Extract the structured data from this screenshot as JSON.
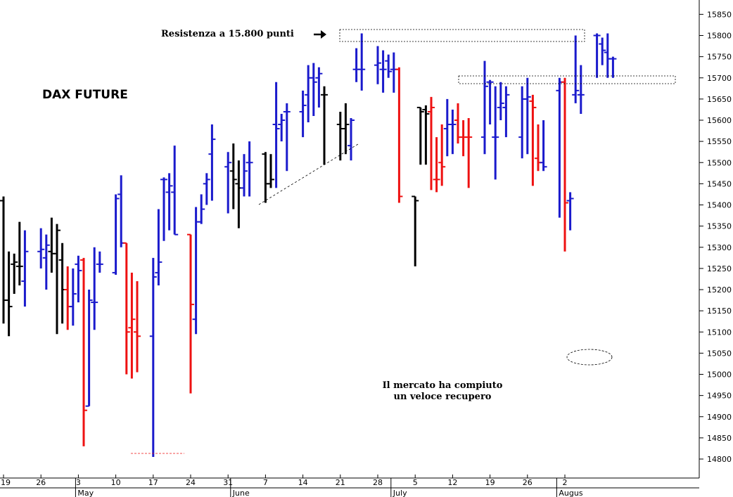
{
  "chart_data": {
    "type": "ohlc",
    "title": "DAX FUTURE",
    "y_ticks": [
      14800,
      14850,
      14900,
      14950,
      15000,
      15050,
      15100,
      15150,
      15200,
      15250,
      15300,
      15350,
      15400,
      15450,
      15500,
      15550,
      15600,
      15650,
      15700,
      15750,
      15800,
      15850
    ],
    "ylim": [
      14770,
      15870
    ],
    "grid": false,
    "x_ticks": [
      {
        "label": "19",
        "day": -1
      },
      {
        "label": "26",
        "day": 6
      },
      {
        "label": "3",
        "day": 13
      },
      {
        "label": "10",
        "day": 20
      },
      {
        "label": "17",
        "day": 27
      },
      {
        "label": "24",
        "day": 34
      },
      {
        "label": "31",
        "day": 41
      },
      {
        "label": "7",
        "day": 48
      },
      {
        "label": "14",
        "day": 55
      },
      {
        "label": "21",
        "day": 62
      },
      {
        "label": "28",
        "day": 69
      },
      {
        "label": "5",
        "day": 76
      },
      {
        "label": "12",
        "day": 83
      },
      {
        "label": "19",
        "day": 90
      },
      {
        "label": "26",
        "day": 97
      },
      {
        "label": "2",
        "day": 104
      }
    ],
    "month_labels": [
      {
        "label": "May",
        "day": 13
      },
      {
        "label": "June",
        "day": 42
      },
      {
        "label": "July",
        "day": 72
      },
      {
        "label": "Augus",
        "day": 103
      }
    ],
    "colors": {
      "up": "#1a1acc",
      "down": "#ee1111",
      "neutral": "#000000"
    },
    "bars": [
      {
        "d": -1,
        "o": 15410,
        "h": 15420,
        "l": 15120,
        "c": 15175,
        "k": "k"
      },
      {
        "d": 0,
        "o": 15175,
        "h": 15290,
        "l": 15090,
        "c": 15160,
        "k": "k"
      },
      {
        "d": 1,
        "o": 15260,
        "h": 15285,
        "l": 15190,
        "c": 15265,
        "k": "k"
      },
      {
        "d": 2,
        "o": 15255,
        "h": 15360,
        "l": 15210,
        "c": 15255,
        "k": "k"
      },
      {
        "d": 3,
        "o": 15220,
        "h": 15340,
        "l": 15160,
        "c": 15290,
        "k": "b"
      },
      {
        "d": 6,
        "o": 15290,
        "h": 15345,
        "l": 15250,
        "c": 15295,
        "k": "b"
      },
      {
        "d": 7,
        "o": 15275,
        "h": 15330,
        "l": 15200,
        "c": 15305,
        "k": "b"
      },
      {
        "d": 8,
        "o": 15290,
        "h": 15370,
        "l": 15240,
        "c": 15285,
        "k": "k"
      },
      {
        "d": 9,
        "o": 15285,
        "h": 15355,
        "l": 15095,
        "c": 15340,
        "k": "k"
      },
      {
        "d": 10,
        "o": 15270,
        "h": 15310,
        "l": 15120,
        "c": 15200,
        "k": "k"
      },
      {
        "d": 11,
        "o": 15200,
        "h": 15255,
        "l": 15105,
        "c": 15160,
        "k": "r"
      },
      {
        "d": 12,
        "o": 15160,
        "h": 15250,
        "l": 15115,
        "c": 15190,
        "k": "b"
      },
      {
        "d": 13,
        "o": 15260,
        "h": 15280,
        "l": 15170,
        "c": 15245,
        "k": "b"
      },
      {
        "d": 14,
        "o": 15270,
        "h": 15275,
        "l": 14830,
        "c": 14915,
        "k": "r"
      },
      {
        "d": 15,
        "o": 14925,
        "h": 15200,
        "l": 14925,
        "c": 15175,
        "k": "b"
      },
      {
        "d": 16,
        "o": 15170,
        "h": 15300,
        "l": 15105,
        "c": 15170,
        "k": "b"
      },
      {
        "d": 17,
        "o": 15260,
        "h": 15290,
        "l": 15240,
        "c": 15260,
        "k": "b"
      },
      {
        "d": 20,
        "o": 15240,
        "h": 15425,
        "l": 15235,
        "c": 15415,
        "k": "b"
      },
      {
        "d": 21,
        "o": 15425,
        "h": 15470,
        "l": 15300,
        "c": 15310,
        "k": "b"
      },
      {
        "d": 22,
        "o": 15310,
        "h": 15310,
        "l": 15000,
        "c": 15100,
        "k": "r"
      },
      {
        "d": 23,
        "o": 15110,
        "h": 15240,
        "l": 14990,
        "c": 15130,
        "k": "r"
      },
      {
        "d": 24,
        "o": 15100,
        "h": 15220,
        "l": 15005,
        "c": 15090,
        "k": "r"
      },
      {
        "d": 27,
        "o": 15090,
        "h": 15275,
        "l": 14805,
        "c": 15230,
        "k": "b"
      },
      {
        "d": 28,
        "o": 15240,
        "h": 15390,
        "l": 15210,
        "c": 15265,
        "k": "b"
      },
      {
        "d": 29,
        "o": 15460,
        "h": 15465,
        "l": 15315,
        "c": 15460,
        "k": "b"
      },
      {
        "d": 30,
        "o": 15430,
        "h": 15475,
        "l": 15340,
        "c": 15445,
        "k": "b"
      },
      {
        "d": 31,
        "o": 15430,
        "h": 15540,
        "l": 15330,
        "c": 15330,
        "k": "b"
      },
      {
        "d": 34,
        "o": 15330,
        "h": 15330,
        "l": 14955,
        "c": 15165,
        "k": "r"
      },
      {
        "d": 35,
        "o": 15130,
        "h": 15395,
        "l": 15095,
        "c": 15360,
        "k": "b"
      },
      {
        "d": 36,
        "o": 15360,
        "h": 15425,
        "l": 15355,
        "c": 15390,
        "k": "b"
      },
      {
        "d": 37,
        "o": 15450,
        "h": 15475,
        "l": 15400,
        "c": 15460,
        "k": "b"
      },
      {
        "d": 38,
        "o": 15520,
        "h": 15590,
        "l": 15410,
        "c": 15555,
        "k": "b"
      },
      {
        "d": 41,
        "o": 15490,
        "h": 15525,
        "l": 15380,
        "c": 15500,
        "k": "b"
      },
      {
        "d": 42,
        "o": 15480,
        "h": 15545,
        "l": 15390,
        "c": 15460,
        "k": "k"
      },
      {
        "d": 43,
        "o": 15450,
        "h": 15505,
        "l": 15345,
        "c": 15440,
        "k": "k"
      },
      {
        "d": 44,
        "o": 15440,
        "h": 15520,
        "l": 15420,
        "c": 15480,
        "k": "b"
      },
      {
        "d": 45,
        "o": 15500,
        "h": 15550,
        "l": 15420,
        "c": 15500,
        "k": "b"
      },
      {
        "d": 48,
        "o": 15520,
        "h": 15525,
        "l": 15405,
        "c": 15450,
        "k": "k"
      },
      {
        "d": 49,
        "o": 15450,
        "h": 15520,
        "l": 15440,
        "c": 15460,
        "k": "k"
      },
      {
        "d": 50,
        "o": 15590,
        "h": 15690,
        "l": 15440,
        "c": 15580,
        "k": "b"
      },
      {
        "d": 51,
        "o": 15590,
        "h": 15615,
        "l": 15550,
        "c": 15600,
        "k": "b"
      },
      {
        "d": 52,
        "o": 15620,
        "h": 15640,
        "l": 15480,
        "c": 15620,
        "k": "b"
      },
      {
        "d": 55,
        "o": 15620,
        "h": 15670,
        "l": 15560,
        "c": 15635,
        "k": "b"
      },
      {
        "d": 56,
        "o": 15660,
        "h": 15730,
        "l": 15595,
        "c": 15700,
        "k": "b"
      },
      {
        "d": 57,
        "o": 15700,
        "h": 15735,
        "l": 15610,
        "c": 15690,
        "k": "b"
      },
      {
        "d": 58,
        "o": 15700,
        "h": 15725,
        "l": 15630,
        "c": 15710,
        "k": "b"
      },
      {
        "d": 59,
        "o": 15660,
        "h": 15680,
        "l": 15495,
        "c": 15660,
        "k": "k"
      },
      {
        "d": 62,
        "o": 15590,
        "h": 15620,
        "l": 15505,
        "c": 15580,
        "k": "k"
      },
      {
        "d": 63,
        "o": 15580,
        "h": 15640,
        "l": 15520,
        "c": 15590,
        "k": "k"
      },
      {
        "d": 64,
        "o": 15540,
        "h": 15605,
        "l": 15505,
        "c": 15600,
        "k": "b"
      },
      {
        "d": 65,
        "o": 15720,
        "h": 15770,
        "l": 15690,
        "c": 15720,
        "k": "b"
      },
      {
        "d": 66,
        "o": 15720,
        "h": 15805,
        "l": 15670,
        "c": 15720,
        "k": "b"
      },
      {
        "d": 69,
        "o": 15730,
        "h": 15775,
        "l": 15685,
        "c": 15735,
        "k": "b"
      },
      {
        "d": 70,
        "o": 15720,
        "h": 15765,
        "l": 15665,
        "c": 15720,
        "k": "b"
      },
      {
        "d": 71,
        "o": 15740,
        "h": 15755,
        "l": 15700,
        "c": 15715,
        "k": "b"
      },
      {
        "d": 72,
        "o": 15720,
        "h": 15760,
        "l": 15665,
        "c": 15720,
        "k": "b"
      },
      {
        "d": 73,
        "o": 15720,
        "h": 15725,
        "l": 15405,
        "c": 15420,
        "k": "r"
      },
      {
        "d": 76,
        "o": 15420,
        "h": 15420,
        "l": 15255,
        "c": 15410,
        "k": "k"
      },
      {
        "d": 77,
        "o": 15630,
        "h": 15630,
        "l": 15495,
        "c": 15620,
        "k": "k"
      },
      {
        "d": 78,
        "o": 15625,
        "h": 15635,
        "l": 15495,
        "c": 15615,
        "k": "k"
      },
      {
        "d": 79,
        "o": 15620,
        "h": 15655,
        "l": 15435,
        "c": 15630,
        "k": "r"
      },
      {
        "d": 80,
        "o": 15460,
        "h": 15560,
        "l": 15430,
        "c": 15460,
        "k": "r"
      },
      {
        "d": 81,
        "o": 15500,
        "h": 15590,
        "l": 15445,
        "c": 15490,
        "k": "r"
      },
      {
        "d": 82,
        "o": 15580,
        "h": 15650,
        "l": 15515,
        "c": 15590,
        "k": "b"
      },
      {
        "d": 83,
        "o": 15590,
        "h": 15625,
        "l": 15520,
        "c": 15590,
        "k": "b"
      },
      {
        "d": 84,
        "o": 15600,
        "h": 15640,
        "l": 15545,
        "c": 15560,
        "k": "r"
      },
      {
        "d": 85,
        "o": 15560,
        "h": 15600,
        "l": 15515,
        "c": 15560,
        "k": "r"
      },
      {
        "d": 86,
        "o": 15560,
        "h": 15605,
        "l": 15440,
        "c": 15560,
        "k": "r"
      },
      {
        "d": 89,
        "o": 15560,
        "h": 15740,
        "l": 15520,
        "c": 15680,
        "k": "b"
      },
      {
        "d": 90,
        "o": 15690,
        "h": 15695,
        "l": 15590,
        "c": 15690,
        "k": "b"
      },
      {
        "d": 91,
        "o": 15560,
        "h": 15680,
        "l": 15460,
        "c": 15560,
        "k": "b"
      },
      {
        "d": 92,
        "o": 15630,
        "h": 15690,
        "l": 15600,
        "c": 15640,
        "k": "b"
      },
      {
        "d": 93,
        "o": 15630,
        "h": 15680,
        "l": 15560,
        "c": 15660,
        "k": "b"
      },
      {
        "d": 96,
        "o": 15560,
        "h": 15680,
        "l": 15510,
        "c": 15650,
        "k": "b"
      },
      {
        "d": 97,
        "o": 15650,
        "h": 15700,
        "l": 15520,
        "c": 15655,
        "k": "b"
      },
      {
        "d": 98,
        "o": 15645,
        "h": 15660,
        "l": 15445,
        "c": 15630,
        "k": "r"
      },
      {
        "d": 99,
        "o": 15510,
        "h": 15590,
        "l": 15480,
        "c": 15500,
        "k": "r"
      },
      {
        "d": 100,
        "o": 15500,
        "h": 15600,
        "l": 15480,
        "c": 15490,
        "k": "b"
      },
      {
        "d": 103,
        "o": 15670,
        "h": 15700,
        "l": 15370,
        "c": 15690,
        "k": "b"
      },
      {
        "d": 104,
        "o": 15690,
        "h": 15700,
        "l": 15290,
        "c": 15405,
        "k": "r"
      },
      {
        "d": 105,
        "o": 15410,
        "h": 15430,
        "l": 15340,
        "c": 15415,
        "k": "b"
      },
      {
        "d": 106,
        "o": 15660,
        "h": 15800,
        "l": 15640,
        "c": 15670,
        "k": "b"
      },
      {
        "d": 107,
        "o": 15660,
        "h": 15730,
        "l": 15615,
        "c": 15660,
        "k": "b"
      },
      {
        "d": 110,
        "o": 15800,
        "h": 15805,
        "l": 15700,
        "c": 15800,
        "k": "b"
      },
      {
        "d": 111,
        "o": 15780,
        "h": 15795,
        "l": 15730,
        "c": 15765,
        "k": "b"
      },
      {
        "d": 112,
        "o": 15760,
        "h": 15805,
        "l": 15700,
        "c": 15745,
        "k": "b"
      },
      {
        "d": 113,
        "o": 15745,
        "h": 15750,
        "l": 15700,
        "c": 15745,
        "k": "b"
      }
    ]
  },
  "annotations": {
    "title": "DAX FUTURE",
    "resistance_label": "Resistenza a 15.800 punti",
    "recovery_line1": "Il mercato ha compiuto",
    "recovery_line2": "un veloce recupero"
  }
}
